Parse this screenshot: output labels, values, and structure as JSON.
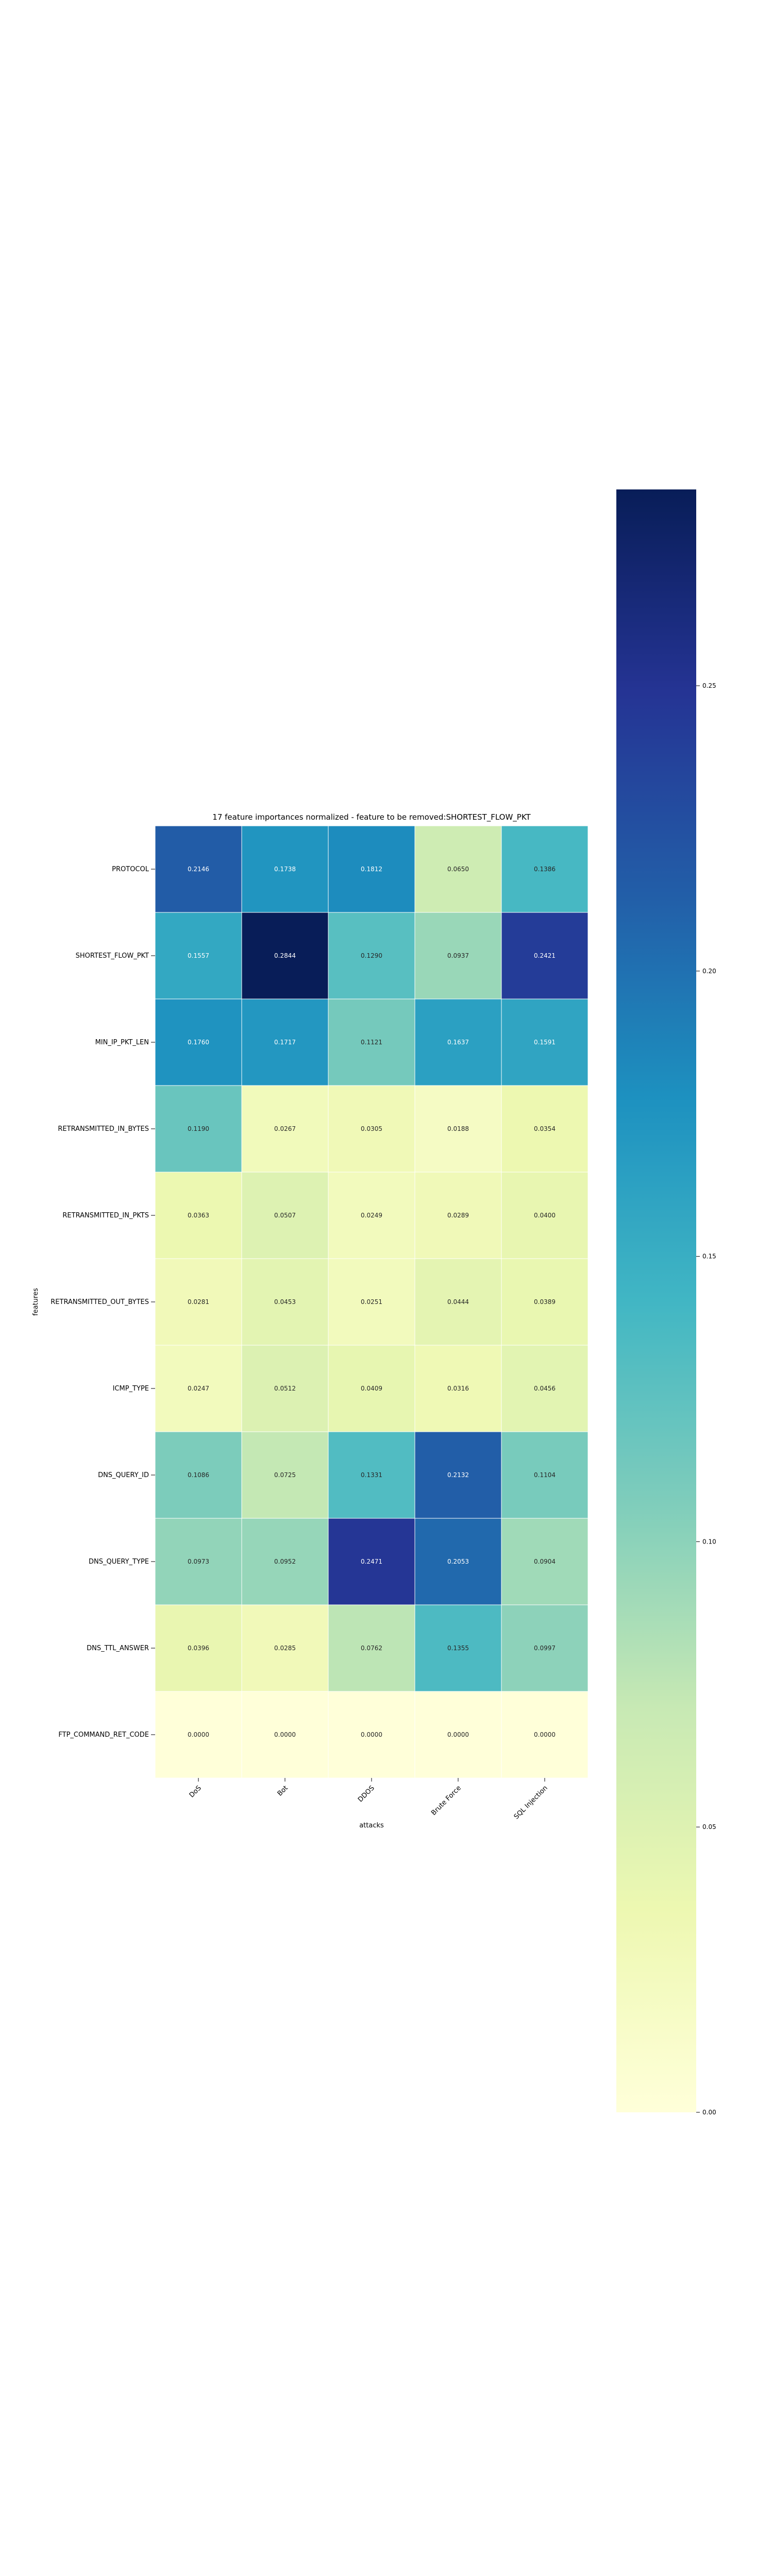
{
  "chart_data": {
    "type": "heatmap",
    "title": "17 feature importances normalized - feature to be removed:SHORTEST_FLOW_PKT",
    "xlabel": "attacks",
    "ylabel": "features",
    "x_categories": [
      "DoS",
      "Bot",
      "DDOS",
      "Brute Force",
      "SQL Injection"
    ],
    "y_categories": [
      "PROTOCOL",
      "SHORTEST_FLOW_PKT",
      "MIN_IP_PKT_LEN",
      "RETRANSMITTED_IN_BYTES",
      "RETRANSMITTED_IN_PKTS",
      "RETRANSMITTED_OUT_BYTES",
      "ICMP_TYPE",
      "DNS_QUERY_ID",
      "DNS_QUERY_TYPE",
      "DNS_TTL_ANSWER",
      "FTP_COMMAND_RET_CODE"
    ],
    "values": [
      [
        0.2146,
        0.1738,
        0.1812,
        0.065,
        0.1386
      ],
      [
        0.1557,
        0.2844,
        0.129,
        0.0937,
        0.2421
      ],
      [
        0.176,
        0.1717,
        0.1121,
        0.1637,
        0.1591
      ],
      [
        0.119,
        0.0267,
        0.0305,
        0.0188,
        0.0354
      ],
      [
        0.0363,
        0.0507,
        0.0249,
        0.0289,
        0.04
      ],
      [
        0.0281,
        0.0453,
        0.0251,
        0.0444,
        0.0389
      ],
      [
        0.0247,
        0.0512,
        0.0409,
        0.0316,
        0.0456
      ],
      [
        0.1086,
        0.0725,
        0.1331,
        0.2132,
        0.1104
      ],
      [
        0.0973,
        0.0952,
        0.2471,
        0.2053,
        0.0904
      ],
      [
        0.0396,
        0.0285,
        0.0762,
        0.1355,
        0.0997
      ],
      [
        0.0,
        0.0,
        0.0,
        0.0,
        0.0
      ]
    ],
    "colormap": "YlGnBu",
    "vmin": 0.0,
    "vmax": 0.2844,
    "colorbar_ticks": [
      0.0,
      0.05,
      0.1,
      0.15,
      0.2,
      0.25
    ],
    "colorbar_tick_labels": [
      "0.00",
      "0.05",
      "0.10",
      "0.15",
      "0.20",
      "0.25"
    ],
    "grid": false,
    "legend": "colorbar-right"
  }
}
